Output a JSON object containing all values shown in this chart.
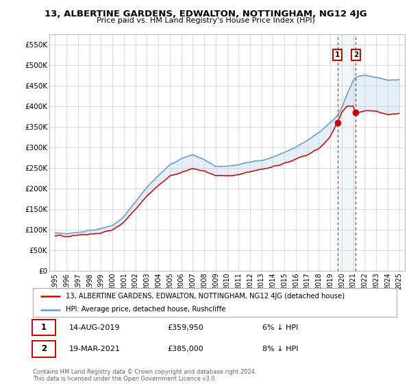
{
  "title": "13, ALBERTINE GARDENS, EDWALTON, NOTTINGHAM, NG12 4JG",
  "subtitle": "Price paid vs. HM Land Registry's House Price Index (HPI)",
  "yticks": [
    0,
    50000,
    100000,
    150000,
    200000,
    250000,
    300000,
    350000,
    400000,
    450000,
    500000,
    550000
  ],
  "ylim": [
    0,
    575000
  ],
  "sale1_date": "14-AUG-2019",
  "sale1_price": 359950,
  "sale1_year": 2019.619,
  "sale1_hpi_text": "6% ↓ HPI",
  "sale2_date": "19-MAR-2021",
  "sale2_price": 385000,
  "sale2_year": 2021.216,
  "sale2_hpi_text": "8% ↓ HPI",
  "legend_line1": "13, ALBERTINE GARDENS, EDWALTON, NOTTINGHAM, NG12 4JG (detached house)",
  "legend_line2": "HPI: Average price, detached house, Rushcliffe",
  "footnote": "Contains HM Land Registry data © Crown copyright and database right 2024.\nThis data is licensed under the Open Government Licence v3.0.",
  "line_color_property": "#cc0000",
  "line_color_hpi": "#6699cc",
  "fill_color": "#aaccee",
  "background_color": "#ffffff",
  "grid_color": "#cccccc",
  "hpi_knots_t": [
    0,
    1,
    2,
    3,
    4,
    5,
    6,
    7,
    8,
    9,
    10,
    11,
    12,
    13,
    14,
    15,
    16,
    17,
    18,
    19,
    20,
    21,
    22,
    23,
    24,
    24.6,
    25,
    25.5,
    26,
    26.2,
    27,
    28,
    29,
    30
  ],
  "hpi_knots_v": [
    92000,
    92500,
    94000,
    98000,
    103000,
    110000,
    130000,
    165000,
    200000,
    230000,
    255000,
    270000,
    280000,
    270000,
    255000,
    255000,
    258000,
    265000,
    270000,
    278000,
    288000,
    300000,
    315000,
    335000,
    360000,
    375000,
    395000,
    430000,
    460000,
    468000,
    475000,
    468000,
    462000,
    465000
  ],
  "prop_knots_t": [
    0,
    1,
    2,
    3,
    4,
    5,
    6,
    7,
    8,
    9,
    10,
    11,
    12,
    13,
    14,
    15,
    16,
    17,
    18,
    19,
    20,
    21,
    22,
    23,
    24,
    24.6,
    25,
    25.5,
    26,
    26.2,
    27,
    28,
    29,
    30
  ],
  "prop_knots_v": [
    85000,
    86000,
    88000,
    91000,
    96000,
    102000,
    118000,
    148000,
    178000,
    205000,
    228000,
    240000,
    250000,
    245000,
    232000,
    232000,
    236000,
    242000,
    248000,
    255000,
    262000,
    272000,
    283000,
    300000,
    328000,
    359950,
    385000,
    400000,
    400000,
    385000,
    390000,
    390000,
    380000,
    383000
  ],
  "xlim_left": 1994.5,
  "xlim_right": 2025.5
}
